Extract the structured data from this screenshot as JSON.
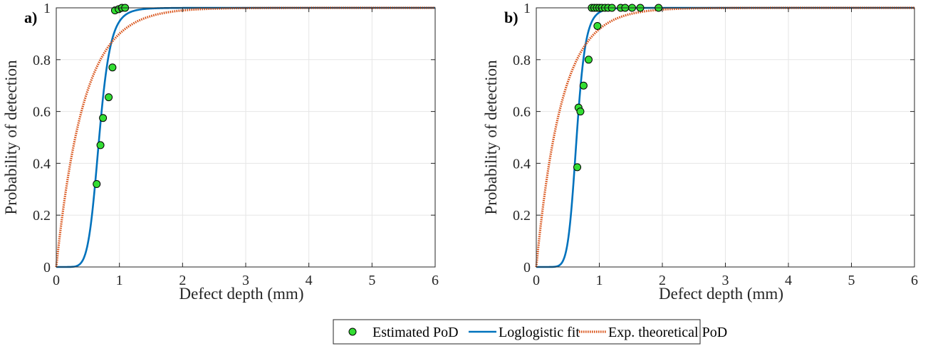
{
  "chart_data": [
    {
      "type": "scatter",
      "panel_label": "a)",
      "xlabel": "Defect depth (mm)",
      "ylabel": "Probability of detection",
      "xlim": [
        0,
        6
      ],
      "ylim": [
        0,
        1
      ],
      "xticks": [
        0,
        1,
        2,
        3,
        4,
        5,
        6
      ],
      "yticks": [
        0,
        0.2,
        0.4,
        0.6,
        0.8,
        1
      ],
      "grid": true,
      "series": [
        {
          "name": "Estimated PoD",
          "kind": "points",
          "x": [
            0.64,
            0.7,
            0.74,
            0.83,
            0.89,
            0.93,
            0.99,
            1.04,
            1.09
          ],
          "y": [
            0.32,
            0.47,
            0.575,
            0.655,
            0.77,
            0.99,
            0.995,
            1.0,
            1.0
          ]
        },
        {
          "name": "Loglogistic fit",
          "kind": "loglogistic",
          "median": 0.68,
          "slope": 7.5
        },
        {
          "name": "Exp. theoretical PoD",
          "kind": "exponential",
          "rate": 2.3
        }
      ]
    },
    {
      "type": "scatter",
      "panel_label": "b)",
      "xlabel": "Defect depth (mm)",
      "ylabel": "Probability of detection",
      "xlim": [
        0,
        6
      ],
      "ylim": [
        0,
        1
      ],
      "xticks": [
        0,
        1,
        2,
        3,
        4,
        5,
        6
      ],
      "yticks": [
        0,
        0.2,
        0.4,
        0.6,
        0.8,
        1
      ],
      "grid": true,
      "series": [
        {
          "name": "Estimated PoD",
          "kind": "points",
          "x": [
            0.65,
            0.67,
            0.7,
            0.75,
            0.83,
            0.88,
            0.92,
            0.96,
            0.97,
            1.0,
            1.04,
            1.09,
            1.14,
            1.2,
            1.34,
            1.41,
            1.52,
            1.65,
            1.94
          ],
          "y": [
            0.385,
            0.615,
            0.6,
            0.7,
            0.8,
            1.0,
            1.0,
            1.0,
            0.93,
            1.0,
            1.0,
            1.0,
            1.0,
            1.0,
            1.0,
            1.0,
            1.0,
            1.0,
            1.0
          ]
        },
        {
          "name": "Loglogistic fit",
          "kind": "loglogistic",
          "median": 0.64,
          "slope": 9.0
        },
        {
          "name": "Exp. theoretical PoD",
          "kind": "exponential",
          "rate": 2.5
        }
      ]
    }
  ],
  "legend": {
    "entries": [
      "Estimated PoD",
      "Loglogistic fit",
      "Exp. theoretical PoD"
    ]
  },
  "colors": {
    "points": "#33dd33",
    "loglogistic": "#0072bd",
    "exponential": "#d95319",
    "grid": "#e6e6e6",
    "axes": "#262626"
  }
}
